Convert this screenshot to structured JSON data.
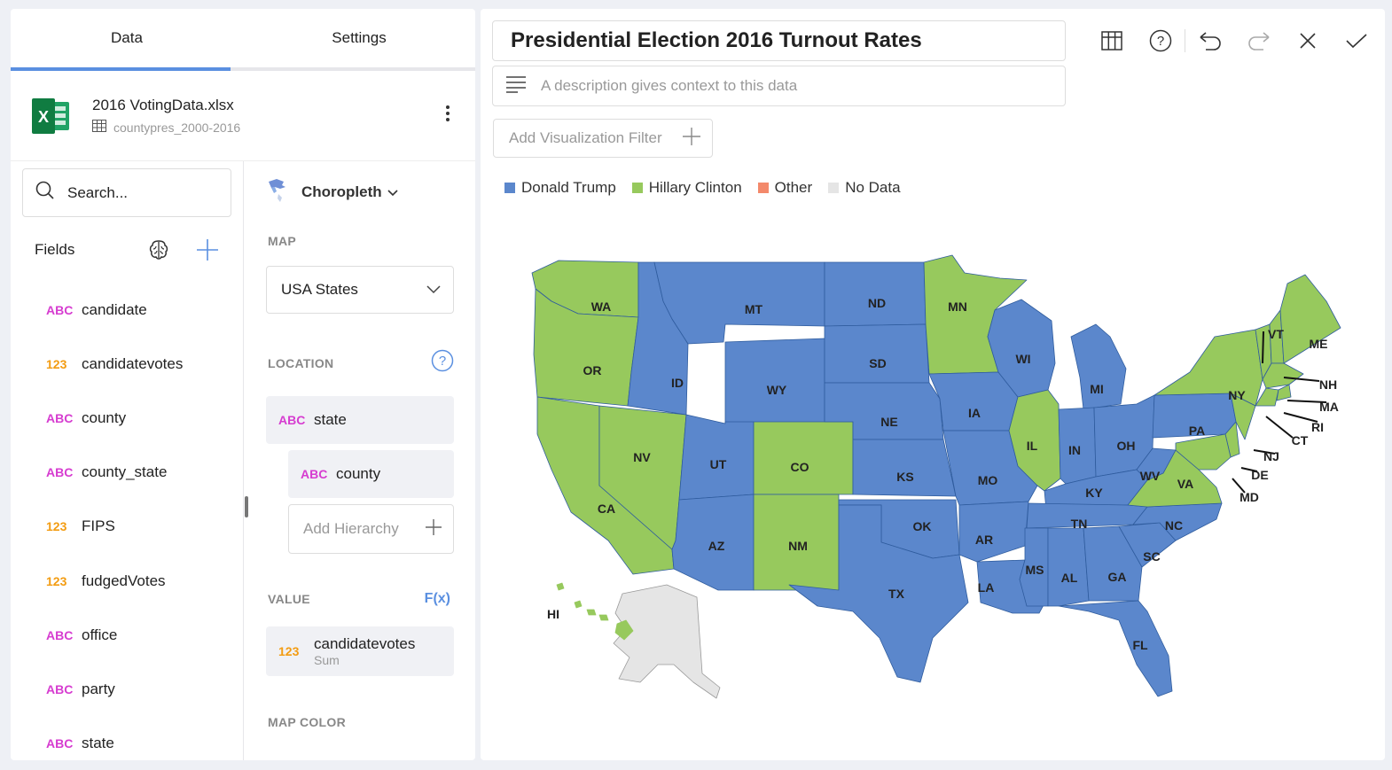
{
  "tabs": [
    {
      "label": "Data",
      "active": true
    },
    {
      "label": "Settings",
      "active": false
    }
  ],
  "datasource": {
    "file_name": "2016 VotingData.xlsx",
    "sheet_name": "countypres_2000-2016"
  },
  "search": {
    "placeholder": "Search..."
  },
  "fields": {
    "title": "Fields",
    "items": [
      {
        "type": "ABC",
        "label": "candidate"
      },
      {
        "type": "123",
        "label": "candidatevotes"
      },
      {
        "type": "ABC",
        "label": "county"
      },
      {
        "type": "ABC",
        "label": "county_state"
      },
      {
        "type": "123",
        "label": "FIPS"
      },
      {
        "type": "123",
        "label": "fudgedVotes"
      },
      {
        "type": "ABC",
        "label": "office"
      },
      {
        "type": "ABC",
        "label": "party"
      },
      {
        "type": "ABC",
        "label": "state"
      }
    ]
  },
  "config": {
    "viz_type": "Choropleth",
    "map_label": "MAP",
    "map_value": "USA States",
    "location_label": "LOCATION",
    "location_field": {
      "type": "ABC",
      "label": "state"
    },
    "location_child": {
      "type": "ABC",
      "label": "county"
    },
    "add_hierarchy": "Add Hierarchy",
    "value_label": "VALUE",
    "fx_label": "F(x)",
    "value_field": {
      "type": "123",
      "label": "candidatevotes",
      "aggregation": "Sum"
    },
    "map_color_label": "MAP COLOR"
  },
  "visualization": {
    "title": "Presidential Election 2016 Turnout Rates",
    "description_placeholder": "A description gives context to this data",
    "filter_placeholder": "Add Visualization Filter",
    "legend": [
      {
        "label": "Donald Trump",
        "color": "#5b87cc"
      },
      {
        "label": "Hillary Clinton",
        "color": "#97c95d"
      },
      {
        "label": "Other",
        "color": "#f3896b"
      },
      {
        "label": "No Data",
        "color": "#e5e5e5"
      }
    ],
    "state_labels": [
      "WA",
      "MT",
      "ND",
      "MN",
      "OR",
      "ID",
      "SD",
      "WY",
      "WI",
      "MI",
      "NE",
      "IA",
      "NV",
      "UT",
      "CO",
      "IL",
      "IN",
      "OH",
      "PA",
      "NY",
      "VT",
      "NH",
      "MA",
      "RI",
      "CT",
      "NJ",
      "DE",
      "MD",
      "ME",
      "CA",
      "KS",
      "MO",
      "KY",
      "WV",
      "VA",
      "OK",
      "AZ",
      "NM",
      "TN",
      "NC",
      "AR",
      "SC",
      "MS",
      "AL",
      "GA",
      "TX",
      "LA",
      "FL",
      "HI"
    ]
  },
  "colors": {
    "accent": "#5a8fe0",
    "trump": "#5b87cc",
    "clinton": "#97c95d",
    "other": "#f3896b",
    "nodata": "#e5e5e5"
  }
}
